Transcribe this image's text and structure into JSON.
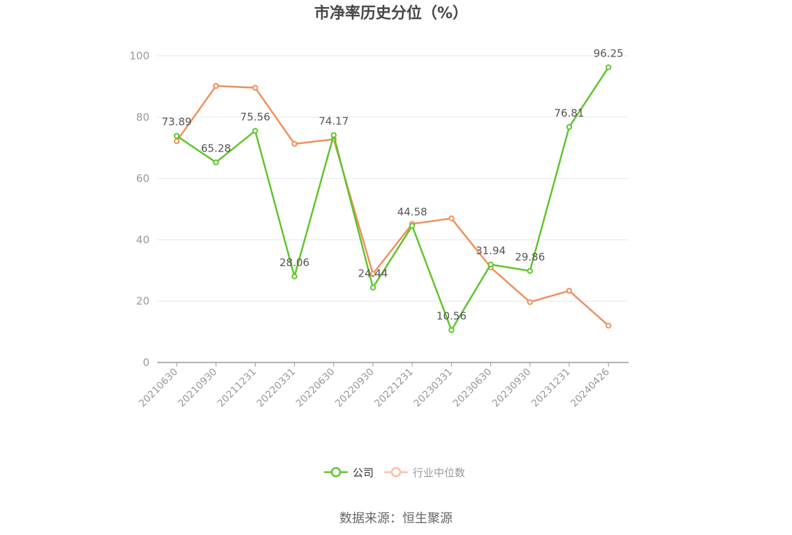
{
  "chart_data": {
    "type": "line",
    "title": "市净率历史分位（%）",
    "categories": [
      "20210630",
      "20210930",
      "20211231",
      "20220331",
      "20220630",
      "20220930",
      "20221231",
      "20230331",
      "20230630",
      "20230930",
      "20231231",
      "20240426"
    ],
    "ylim": [
      0,
      100
    ],
    "yticks": [
      0,
      20,
      40,
      60,
      80,
      100
    ],
    "grid": true,
    "legend_position": "bottom-center",
    "series": [
      {
        "name": "公司",
        "color": "#5ec52b",
        "values": [
          73.89,
          65.28,
          75.56,
          28.06,
          74.17,
          24.44,
          44.58,
          10.56,
          31.94,
          29.86,
          76.81,
          96.25
        ],
        "labels": [
          "73.89",
          "65.28",
          "75.56",
          "28.06",
          "74.17",
          "24.44",
          "44.58",
          "10.56",
          "31.94",
          "29.86",
          "76.81",
          "96.25"
        ],
        "show_labels": true
      },
      {
        "name": "行业中位数",
        "color": "#f28e5c",
        "legend_color": "#f8bfa5",
        "values": [
          72.2,
          90.2,
          89.6,
          71.3,
          72.8,
          28.9,
          45.2,
          47.0,
          31.0,
          19.7,
          23.4,
          12.0
        ],
        "show_labels": false
      }
    ]
  },
  "source": "数据来源：恒生聚源"
}
